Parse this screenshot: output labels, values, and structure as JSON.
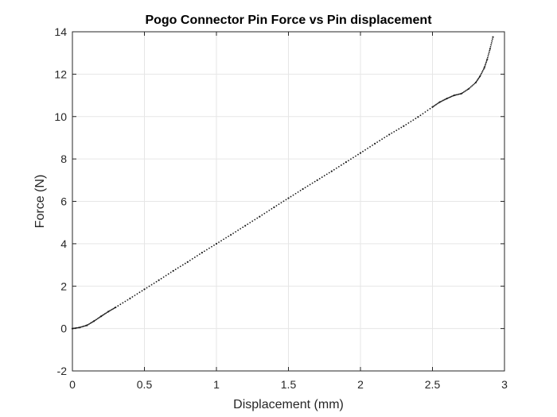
{
  "chart_data": {
    "type": "scatter",
    "title": "Pogo Connector Pin Force vs Pin displacement",
    "xlabel": "Displacement (mm)",
    "ylabel": "Force (N)",
    "xlim": [
      0,
      3
    ],
    "ylim": [
      -2,
      14
    ],
    "xticks": [
      0,
      0.5,
      1,
      1.5,
      2,
      2.5,
      3
    ],
    "yticks": [
      -2,
      0,
      2,
      4,
      6,
      8,
      10,
      12,
      14
    ],
    "xtick_labels": [
      "0",
      "0.5",
      "1",
      "1.5",
      "2",
      "2.5",
      "3"
    ],
    "ytick_labels": [
      "-2",
      "0",
      "2",
      "4",
      "6",
      "8",
      "10",
      "12",
      "14"
    ],
    "grid": true,
    "marker": "dot",
    "colors": {
      "marker": "#1a1a1a",
      "axis": "#262626",
      "grid": "#e6e6e6"
    },
    "series": [
      {
        "x": [
          0,
          0.05,
          0.1,
          0.15,
          0.2,
          0.25,
          0.3,
          0.4,
          0.5,
          0.6,
          0.7,
          0.8,
          0.9,
          1.0,
          1.1,
          1.2,
          1.3,
          1.4,
          1.5,
          1.6,
          1.7,
          1.8,
          1.9,
          2.0,
          2.1,
          2.2,
          2.3,
          2.4,
          2.5,
          2.55,
          2.6,
          2.65,
          2.7,
          2.75,
          2.8,
          2.83,
          2.86,
          2.88,
          2.9,
          2.92
        ],
        "y": [
          0,
          0.05,
          0.15,
          0.35,
          0.58,
          0.8,
          1.0,
          1.42,
          1.85,
          2.28,
          2.72,
          3.14,
          3.58,
          4.0,
          4.42,
          4.85,
          5.28,
          5.72,
          6.15,
          6.58,
          7.0,
          7.42,
          7.85,
          8.28,
          8.72,
          9.15,
          9.55,
          9.98,
          10.45,
          10.68,
          10.85,
          11.0,
          11.08,
          11.3,
          11.6,
          11.9,
          12.3,
          12.7,
          13.2,
          13.75
        ]
      }
    ]
  }
}
